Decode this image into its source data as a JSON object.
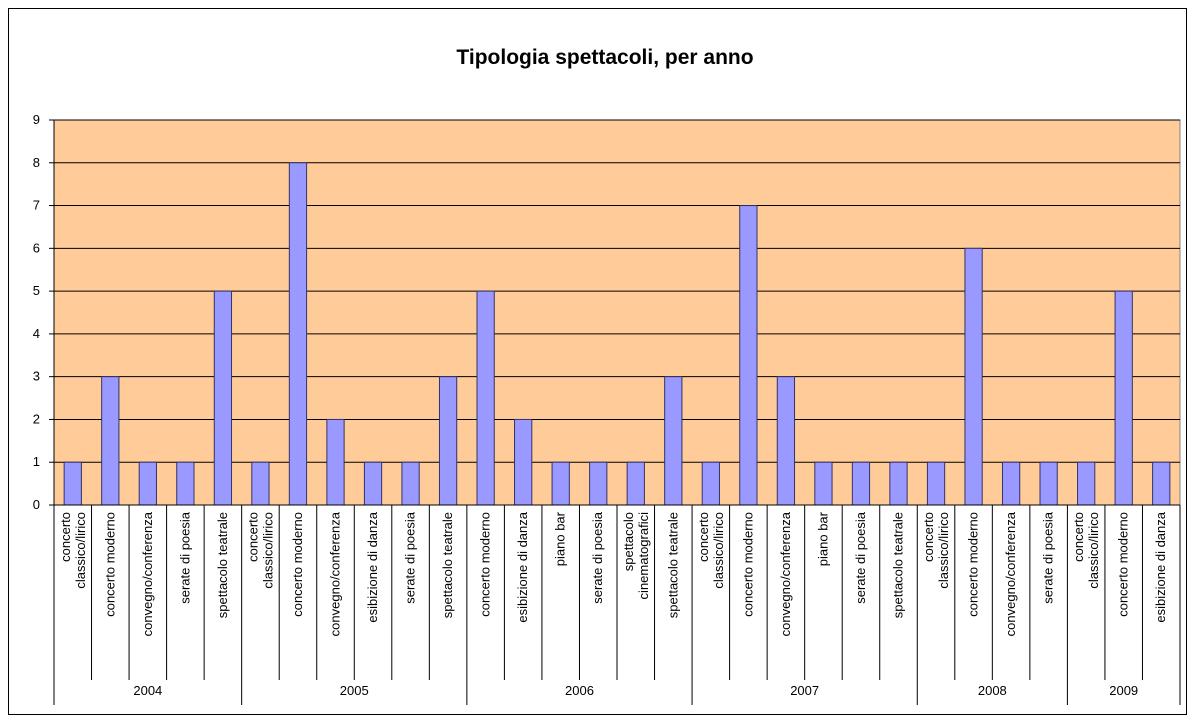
{
  "chart_data": {
    "type": "bar",
    "title": "Tipologia spettacoli, per anno",
    "color": "#9999ff",
    "plot_background": "#ffcc99",
    "grid": true,
    "ylim": [
      0,
      9
    ],
    "yticks": [
      0,
      1,
      2,
      3,
      4,
      5,
      6,
      7,
      8,
      9
    ],
    "groups": [
      {
        "name": "2004",
        "categories": [
          "concerto classico/lirico",
          "concerto moderno",
          "convegno/conferenza",
          "serate di poesia",
          "spettacolo teatrale"
        ],
        "values": [
          1,
          3,
          1,
          1,
          5
        ]
      },
      {
        "name": "2005",
        "categories": [
          "concerto classico/lirico",
          "concerto moderno",
          "convegno/conferenza",
          "esibizione di danza",
          "serate di poesia",
          "spettacolo teatrale"
        ],
        "values": [
          1,
          8,
          2,
          1,
          1,
          3
        ]
      },
      {
        "name": "2006",
        "categories": [
          "concerto moderno",
          "esibizione di danza",
          "piano bar",
          "serate di poesia",
          "spettacolo cinematografici",
          "spettacolo teatrale"
        ],
        "values": [
          5,
          2,
          1,
          1,
          1,
          3
        ]
      },
      {
        "name": "2007",
        "categories": [
          "concerto classico/lirico",
          "concerto moderno",
          "convegno/conferenza",
          "piano bar",
          "serate di poesia",
          "spettacolo teatrale"
        ],
        "values": [
          1,
          7,
          3,
          1,
          1,
          1
        ]
      },
      {
        "name": "2008",
        "categories": [
          "concerto classico/lirico",
          "concerto moderno",
          "convegno/conferenza",
          "serate di poesia"
        ],
        "values": [
          1,
          6,
          1,
          1
        ]
      },
      {
        "name": "2009",
        "categories": [
          "concerto classico/lirico",
          "concerto moderno",
          "esibizione di danza"
        ],
        "values": [
          1,
          5,
          1
        ]
      }
    ]
  }
}
